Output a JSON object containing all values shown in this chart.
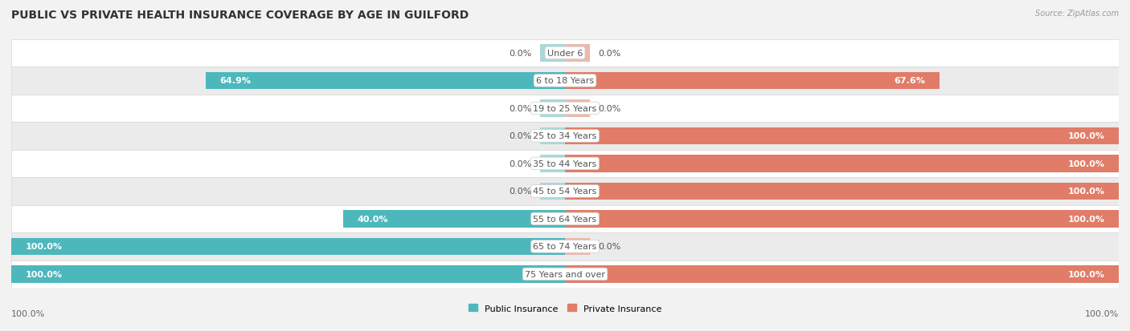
{
  "title": "PUBLIC VS PRIVATE HEALTH INSURANCE COVERAGE BY AGE IN GUILFORD",
  "source": "Source: ZipAtlas.com",
  "categories": [
    "Under 6",
    "6 to 18 Years",
    "19 to 25 Years",
    "25 to 34 Years",
    "35 to 44 Years",
    "45 to 54 Years",
    "55 to 64 Years",
    "65 to 74 Years",
    "75 Years and over"
  ],
  "public_values": [
    0.0,
    64.9,
    0.0,
    0.0,
    0.0,
    0.0,
    40.0,
    100.0,
    100.0
  ],
  "private_values": [
    0.0,
    67.6,
    0.0,
    100.0,
    100.0,
    100.0,
    100.0,
    0.0,
    100.0
  ],
  "public_color": "#4db8bc",
  "private_color": "#e07c68",
  "public_color_light": "#a8d8da",
  "private_color_light": "#f0b8aa",
  "bg_color": "#f2f2f2",
  "row_bg_even": "#ffffff",
  "row_bg_odd": "#ebebeb",
  "row_border_color": "#d8d8d8",
  "max_val": 100.0,
  "center_label_color": "#555555",
  "value_label_inside_color": "#ffffff",
  "value_label_outside_color": "#555555",
  "legend_public": "Public Insurance",
  "legend_private": "Private Insurance",
  "title_fontsize": 10,
  "label_fontsize": 8,
  "cat_fontsize": 8,
  "tick_fontsize": 8,
  "source_fontsize": 7
}
